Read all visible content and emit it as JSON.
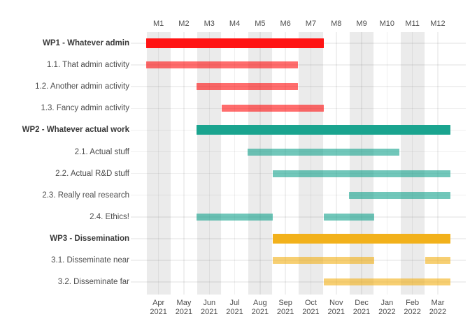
{
  "chart_data": {
    "type": "gantt",
    "title": "",
    "unit": "project month",
    "x_axis_top": {
      "tick_labels": [
        "M1",
        "M2",
        "M3",
        "M4",
        "M5",
        "M6",
        "M7",
        "M8",
        "M9",
        "M10",
        "M11",
        "M12"
      ]
    },
    "x_axis_bottom": {
      "tick_labels": [
        {
          "month": "Apr",
          "year": "2021"
        },
        {
          "month": "May",
          "year": "2021"
        },
        {
          "month": "Jun",
          "year": "2021"
        },
        {
          "month": "Jul",
          "year": "2021"
        },
        {
          "month": "Aug",
          "year": "2021"
        },
        {
          "month": "Sep",
          "year": "2021"
        },
        {
          "month": "Oct",
          "year": "2021"
        },
        {
          "month": "Nov",
          "year": "2021"
        },
        {
          "month": "Dec",
          "year": "2021"
        },
        {
          "month": "Jan",
          "year": "2022"
        },
        {
          "month": "Feb",
          "year": "2022"
        },
        {
          "month": "Mar",
          "year": "2022"
        }
      ]
    },
    "tasks": [
      {
        "label": "WP1 - Whatever admin",
        "level": "wp",
        "group": "wp1",
        "bars": [
          [
            1,
            7
          ]
        ]
      },
      {
        "label": "1.1. That admin activity",
        "level": "activity",
        "group": "wp1",
        "bars": [
          [
            1,
            6
          ]
        ]
      },
      {
        "label": "1.2. Another admin activity",
        "level": "activity",
        "group": "wp1",
        "bars": [
          [
            3,
            6
          ]
        ]
      },
      {
        "label": "1.3. Fancy admin activity",
        "level": "activity",
        "group": "wp1",
        "bars": [
          [
            4,
            7
          ]
        ]
      },
      {
        "label": "WP2 - Whatever actual work",
        "level": "wp",
        "group": "wp2",
        "bars": [
          [
            3,
            12
          ]
        ]
      },
      {
        "label": "2.1. Actual stuff",
        "level": "activity",
        "group": "wp2",
        "bars": [
          [
            5,
            10
          ]
        ]
      },
      {
        "label": "2.2. Actual R&D stuff",
        "level": "activity",
        "group": "wp2",
        "bars": [
          [
            6,
            12
          ]
        ]
      },
      {
        "label": "2.3. Really real research",
        "level": "activity",
        "group": "wp2",
        "bars": [
          [
            9,
            12
          ]
        ]
      },
      {
        "label": "2.4. Ethics!",
        "level": "activity",
        "group": "wp2",
        "bars": [
          [
            3,
            5
          ],
          [
            8,
            9
          ]
        ]
      },
      {
        "label": "WP3 - Dissemination",
        "level": "wp",
        "group": "wp3",
        "bars": [
          [
            6,
            12
          ]
        ]
      },
      {
        "label": "3.1. Disseminate near",
        "level": "activity",
        "group": "wp3",
        "bars": [
          [
            6,
            9
          ],
          [
            12,
            12
          ]
        ]
      },
      {
        "label": "3.2. Disseminate far",
        "level": "activity",
        "group": "wp3",
        "bars": [
          [
            8,
            12
          ]
        ]
      }
    ],
    "colors": {
      "wp1": "#FF1414",
      "wp2": "#1AA48F",
      "wp3": "#F2B11B",
      "stripe": "#EBEBEB"
    },
    "activity_alpha": 0.62,
    "shaded_months": [
      1,
      3,
      5,
      7,
      9,
      11
    ],
    "axis_range_months": [
      1,
      12
    ],
    "grid": true,
    "legend": "none"
  }
}
